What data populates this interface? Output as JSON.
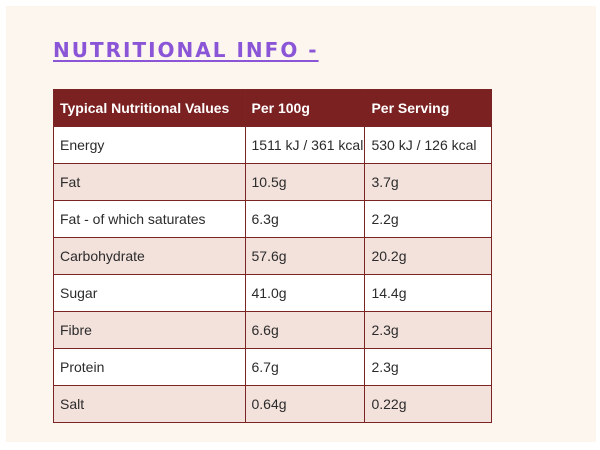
{
  "title": "NUTRITIONAL INFO -",
  "table": {
    "headers": [
      "Typical Nutritional Values",
      "Per 100g",
      "Per Serving"
    ],
    "rows": [
      [
        "Energy",
        "1511 kJ / 361 kcal",
        "530 kJ / 126 kcal"
      ],
      [
        "Fat",
        "10.5g",
        "3.7g"
      ],
      [
        "Fat - of which saturates",
        "6.3g",
        "2.2g"
      ],
      [
        "Carbohydrate",
        "57.6g",
        "20.2g"
      ],
      [
        "Sugar",
        "41.0g",
        "14.4g"
      ],
      [
        "Fibre",
        "6.6g",
        "2.3g"
      ],
      [
        "Protein",
        "6.7g",
        "2.3g"
      ],
      [
        "Salt",
        "0.64g",
        "0.22g"
      ]
    ]
  },
  "colors": {
    "title": "#8a55d6",
    "header_bg": "#7b2121",
    "row_alt_bg": "#f3e2dc",
    "panel_bg": "#fdf6ef"
  }
}
